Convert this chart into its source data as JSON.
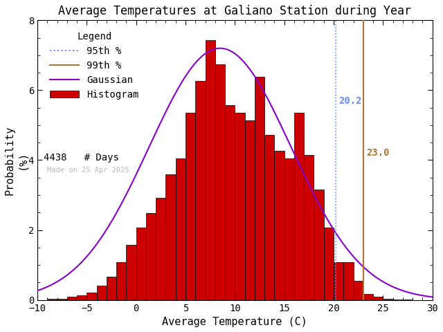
{
  "title": "Average Temperatures at Galiano Station during Year",
  "xlabel": "Average Temperature (C)",
  "ylabel": "Probability\n(%)",
  "xlim": [
    -10,
    30
  ],
  "ylim": [
    0,
    8
  ],
  "yticks": [
    0,
    2,
    4,
    6,
    8
  ],
  "xticks": [
    -10,
    -5,
    0,
    5,
    10,
    15,
    20,
    25,
    30
  ],
  "bar_color": "#cc0000",
  "bar_edgecolor": "#000000",
  "gaussian_mean": 8.5,
  "gaussian_std": 7.2,
  "gaussian_amplitude": 7.2,
  "gaussian_color": "#8800cc",
  "pct95_value": 20.2,
  "pct95_color": "#6688ff",
  "pct99_value": 23.0,
  "pct99_color": "#aa7733",
  "n_days": 4438,
  "watermark": "Made on 25 Apr 2025",
  "background_color": "#ffffff",
  "title_fontsize": 12,
  "axis_fontsize": 11,
  "legend_fontsize": 10,
  "bin_left_edges": [
    -9,
    -8,
    -7,
    -6,
    -5,
    -4,
    -3,
    -2,
    -1,
    0,
    1,
    2,
    3,
    4,
    5,
    6,
    7,
    8,
    9,
    10,
    11,
    12,
    13,
    14,
    15,
    16,
    17,
    18,
    19,
    20,
    21,
    22,
    23,
    24,
    25,
    26,
    27,
    28
  ],
  "bin_heights": [
    0.04,
    0.04,
    0.09,
    0.13,
    0.22,
    0.36,
    0.67,
    1.04,
    1.57,
    2.07,
    2.48,
    2.93,
    3.5,
    4.04,
    5.36,
    6.26,
    7.43,
    6.74,
    5.58,
    5.36,
    5.13,
    6.39,
    4.72,
    4.27,
    4.04,
    5.36,
    4.14,
    3.15,
    2.07,
    1.08,
    1.08,
    0.54,
    0.18,
    0.09,
    0.04,
    0.02,
    0.01,
    0.005
  ]
}
